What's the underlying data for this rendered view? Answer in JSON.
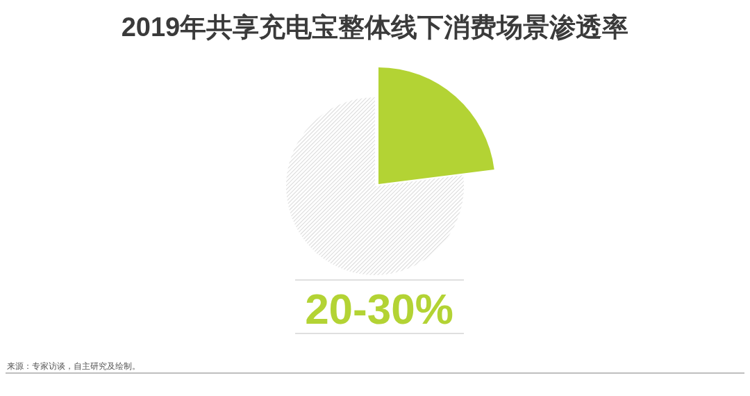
{
  "chart_data": {
    "type": "pie",
    "title": "2019年共享充电宝整体线下消费场景渗透率",
    "categories": [
      null,
      null
    ],
    "values": [
      23,
      77
    ],
    "colors": [
      "#b3d334",
      "#d9d9d9"
    ],
    "annotations": [
      "20-30%",
      "来源：专家访谈，自主研究及绘制。"
    ]
  }
}
